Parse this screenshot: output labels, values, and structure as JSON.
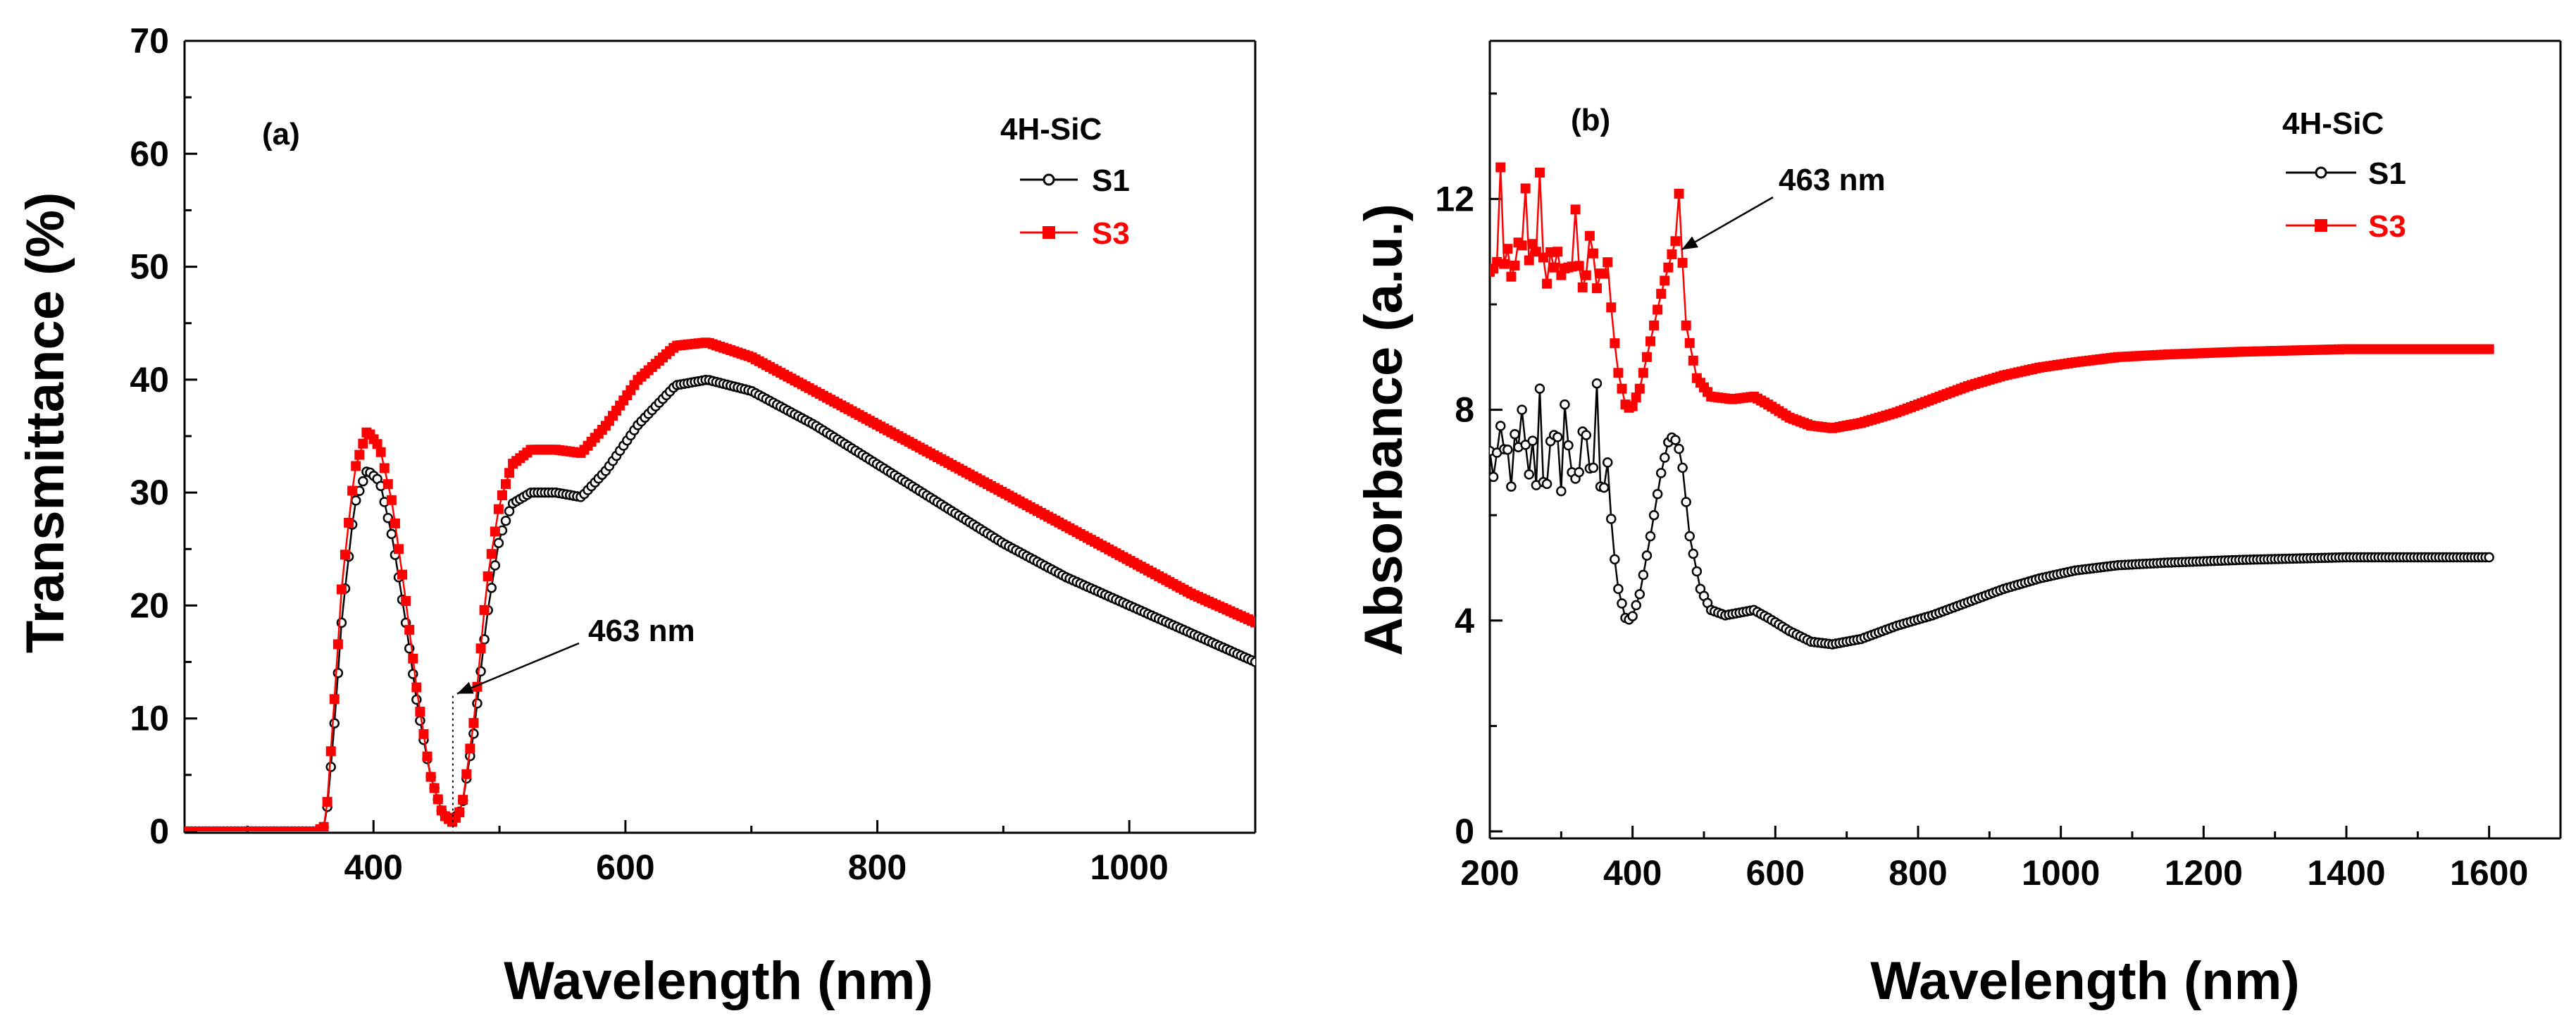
{
  "chart_data": [
    {
      "type": "line",
      "panel_label": "(a)",
      "legend_title": "4H-SiC",
      "legend_position": "top-right",
      "xlabel": "Wavelength (nm)",
      "ylabel": "Transmittance (%)",
      "xlim": [
        250,
        1100
      ],
      "ylim": [
        0,
        70
      ],
      "x_ticks": [
        400,
        600,
        800,
        1000
      ],
      "y_ticks": [
        0,
        10,
        20,
        30,
        40,
        50,
        60,
        70
      ],
      "annotation": {
        "text": "463 nm",
        "x": 463,
        "y": 12
      },
      "series": [
        {
          "name": "S1",
          "color": "#000000",
          "marker": "open-circle",
          "points": [
            [
              250,
              0
            ],
            [
              355,
              0
            ],
            [
              362,
              0.5
            ],
            [
              368,
              8
            ],
            [
              375,
              19
            ],
            [
              385,
              29
            ],
            [
              395,
              32
            ],
            [
              405,
              31
            ],
            [
              415,
              26
            ],
            [
              425,
              19
            ],
            [
              435,
              11
            ],
            [
              445,
              5
            ],
            [
              455,
              1.5
            ],
            [
              463,
              1
            ],
            [
              470,
              2
            ],
            [
              480,
              9
            ],
            [
              490,
              19
            ],
            [
              500,
              26
            ],
            [
              510,
              29
            ],
            [
              525,
              30
            ],
            [
              545,
              30
            ],
            [
              565,
              29.6
            ],
            [
              585,
              32
            ],
            [
              610,
              36
            ],
            [
              640,
              39.5
            ],
            [
              665,
              40
            ],
            [
              700,
              39
            ],
            [
              750,
              36
            ],
            [
              800,
              32.5
            ],
            [
              850,
              29
            ],
            [
              900,
              25.5
            ],
            [
              950,
              22.5
            ],
            [
              1000,
              20
            ],
            [
              1050,
              17.5
            ],
            [
              1100,
              15
            ]
          ]
        },
        {
          "name": "S3",
          "color": "#ff0000",
          "marker": "filled-square",
          "points": [
            [
              250,
              0
            ],
            [
              355,
              0
            ],
            [
              362,
              0.5
            ],
            [
              368,
              10
            ],
            [
              375,
              22
            ],
            [
              385,
              32
            ],
            [
              395,
              35.5
            ],
            [
              405,
              34
            ],
            [
              415,
              29
            ],
            [
              425,
              21
            ],
            [
              435,
              12
            ],
            [
              445,
              5
            ],
            [
              455,
              1.5
            ],
            [
              463,
              0.8
            ],
            [
              470,
              2
            ],
            [
              480,
              10
            ],
            [
              490,
              22
            ],
            [
              500,
              29
            ],
            [
              510,
              32.5
            ],
            [
              525,
              33.8
            ],
            [
              545,
              33.8
            ],
            [
              565,
              33.5
            ],
            [
              585,
              36
            ],
            [
              610,
              40
            ],
            [
              640,
              43
            ],
            [
              665,
              43.3
            ],
            [
              700,
              42
            ],
            [
              750,
              39
            ],
            [
              800,
              36
            ],
            [
              850,
              33
            ],
            [
              900,
              30
            ],
            [
              950,
              27
            ],
            [
              1000,
              24
            ],
            [
              1050,
              21
            ],
            [
              1100,
              18.5
            ]
          ]
        }
      ]
    },
    {
      "type": "line",
      "panel_label": "(b)",
      "legend_title": "4H-SiC",
      "legend_position": "top-right",
      "xlabel": "Wavelength (nm)",
      "ylabel": "Absorbance (a.u.)",
      "xlim": [
        200,
        1700
      ],
      "ylim": [
        0,
        15
      ],
      "x_ticks": [
        200,
        400,
        600,
        800,
        1000,
        1200,
        1400,
        1600
      ],
      "y_ticks": [
        0,
        4,
        8,
        12
      ],
      "annotation": {
        "text": "463 nm",
        "x": 463,
        "y": 11
      },
      "series": [
        {
          "name": "S1",
          "color": "#000000",
          "marker": "open-circle",
          "noisy_region": {
            "x_start": 200,
            "x_end": 365,
            "center": 7.0,
            "amplitude": 0.7,
            "spikes": [
              [
                245,
                8.0
              ],
              [
                268,
                8.4
              ],
              [
                305,
                8.1
              ],
              [
                350,
                8.5
              ]
            ]
          },
          "points": [
            [
              365,
              7.0
            ],
            [
              372,
              5.5
            ],
            [
              380,
              4.6
            ],
            [
              390,
              4.05
            ],
            [
              398,
              4.0
            ],
            [
              410,
              4.5
            ],
            [
              425,
              5.6
            ],
            [
              440,
              6.8
            ],
            [
              452,
              7.5
            ],
            [
              463,
              7.4
            ],
            [
              470,
              6.9
            ],
            [
              480,
              5.6
            ],
            [
              495,
              4.6
            ],
            [
              510,
              4.2
            ],
            [
              530,
              4.1
            ],
            [
              550,
              4.15
            ],
            [
              570,
              4.2
            ],
            [
              590,
              4.05
            ],
            [
              620,
              3.8
            ],
            [
              650,
              3.6
            ],
            [
              680,
              3.55
            ],
            [
              720,
              3.65
            ],
            [
              770,
              3.9
            ],
            [
              820,
              4.1
            ],
            [
              870,
              4.35
            ],
            [
              920,
              4.6
            ],
            [
              970,
              4.8
            ],
            [
              1020,
              4.95
            ],
            [
              1080,
              5.05
            ],
            [
              1150,
              5.1
            ],
            [
              1250,
              5.15
            ],
            [
              1400,
              5.2
            ],
            [
              1500,
              5.2
            ],
            [
              1600,
              5.2
            ]
          ]
        },
        {
          "name": "S3",
          "color": "#ff0000",
          "marker": "filled-square",
          "noisy_region": {
            "x_start": 200,
            "x_end": 365,
            "center": 10.8,
            "amplitude": 0.5,
            "spikes": [
              [
                215,
                12.6
              ],
              [
                248,
                12.2
              ],
              [
                272,
                12.5
              ],
              [
                318,
                11.8
              ],
              [
                340,
                11.3
              ]
            ]
          },
          "points": [
            [
              365,
              10.8
            ],
            [
              372,
              9.6
            ],
            [
              380,
              8.7
            ],
            [
              390,
              8.1
            ],
            [
              398,
              8.0
            ],
            [
              410,
              8.4
            ],
            [
              425,
              9.3
            ],
            [
              440,
              10.2
            ],
            [
              452,
              10.8
            ],
            [
              460,
              11.2
            ],
            [
              463,
              12.7
            ],
            [
              467,
              11.5
            ],
            [
              475,
              9.6
            ],
            [
              490,
              8.6
            ],
            [
              510,
              8.25
            ],
            [
              540,
              8.2
            ],
            [
              570,
              8.25
            ],
            [
              590,
              8.1
            ],
            [
              620,
              7.85
            ],
            [
              650,
              7.7
            ],
            [
              680,
              7.65
            ],
            [
              720,
              7.75
            ],
            [
              770,
              7.95
            ],
            [
              820,
              8.2
            ],
            [
              870,
              8.45
            ],
            [
              920,
              8.65
            ],
            [
              970,
              8.8
            ],
            [
              1020,
              8.9
            ],
            [
              1080,
              9.0
            ],
            [
              1150,
              9.05
            ],
            [
              1250,
              9.1
            ],
            [
              1400,
              9.15
            ],
            [
              1500,
              9.15
            ],
            [
              1600,
              9.15
            ]
          ]
        }
      ]
    }
  ]
}
